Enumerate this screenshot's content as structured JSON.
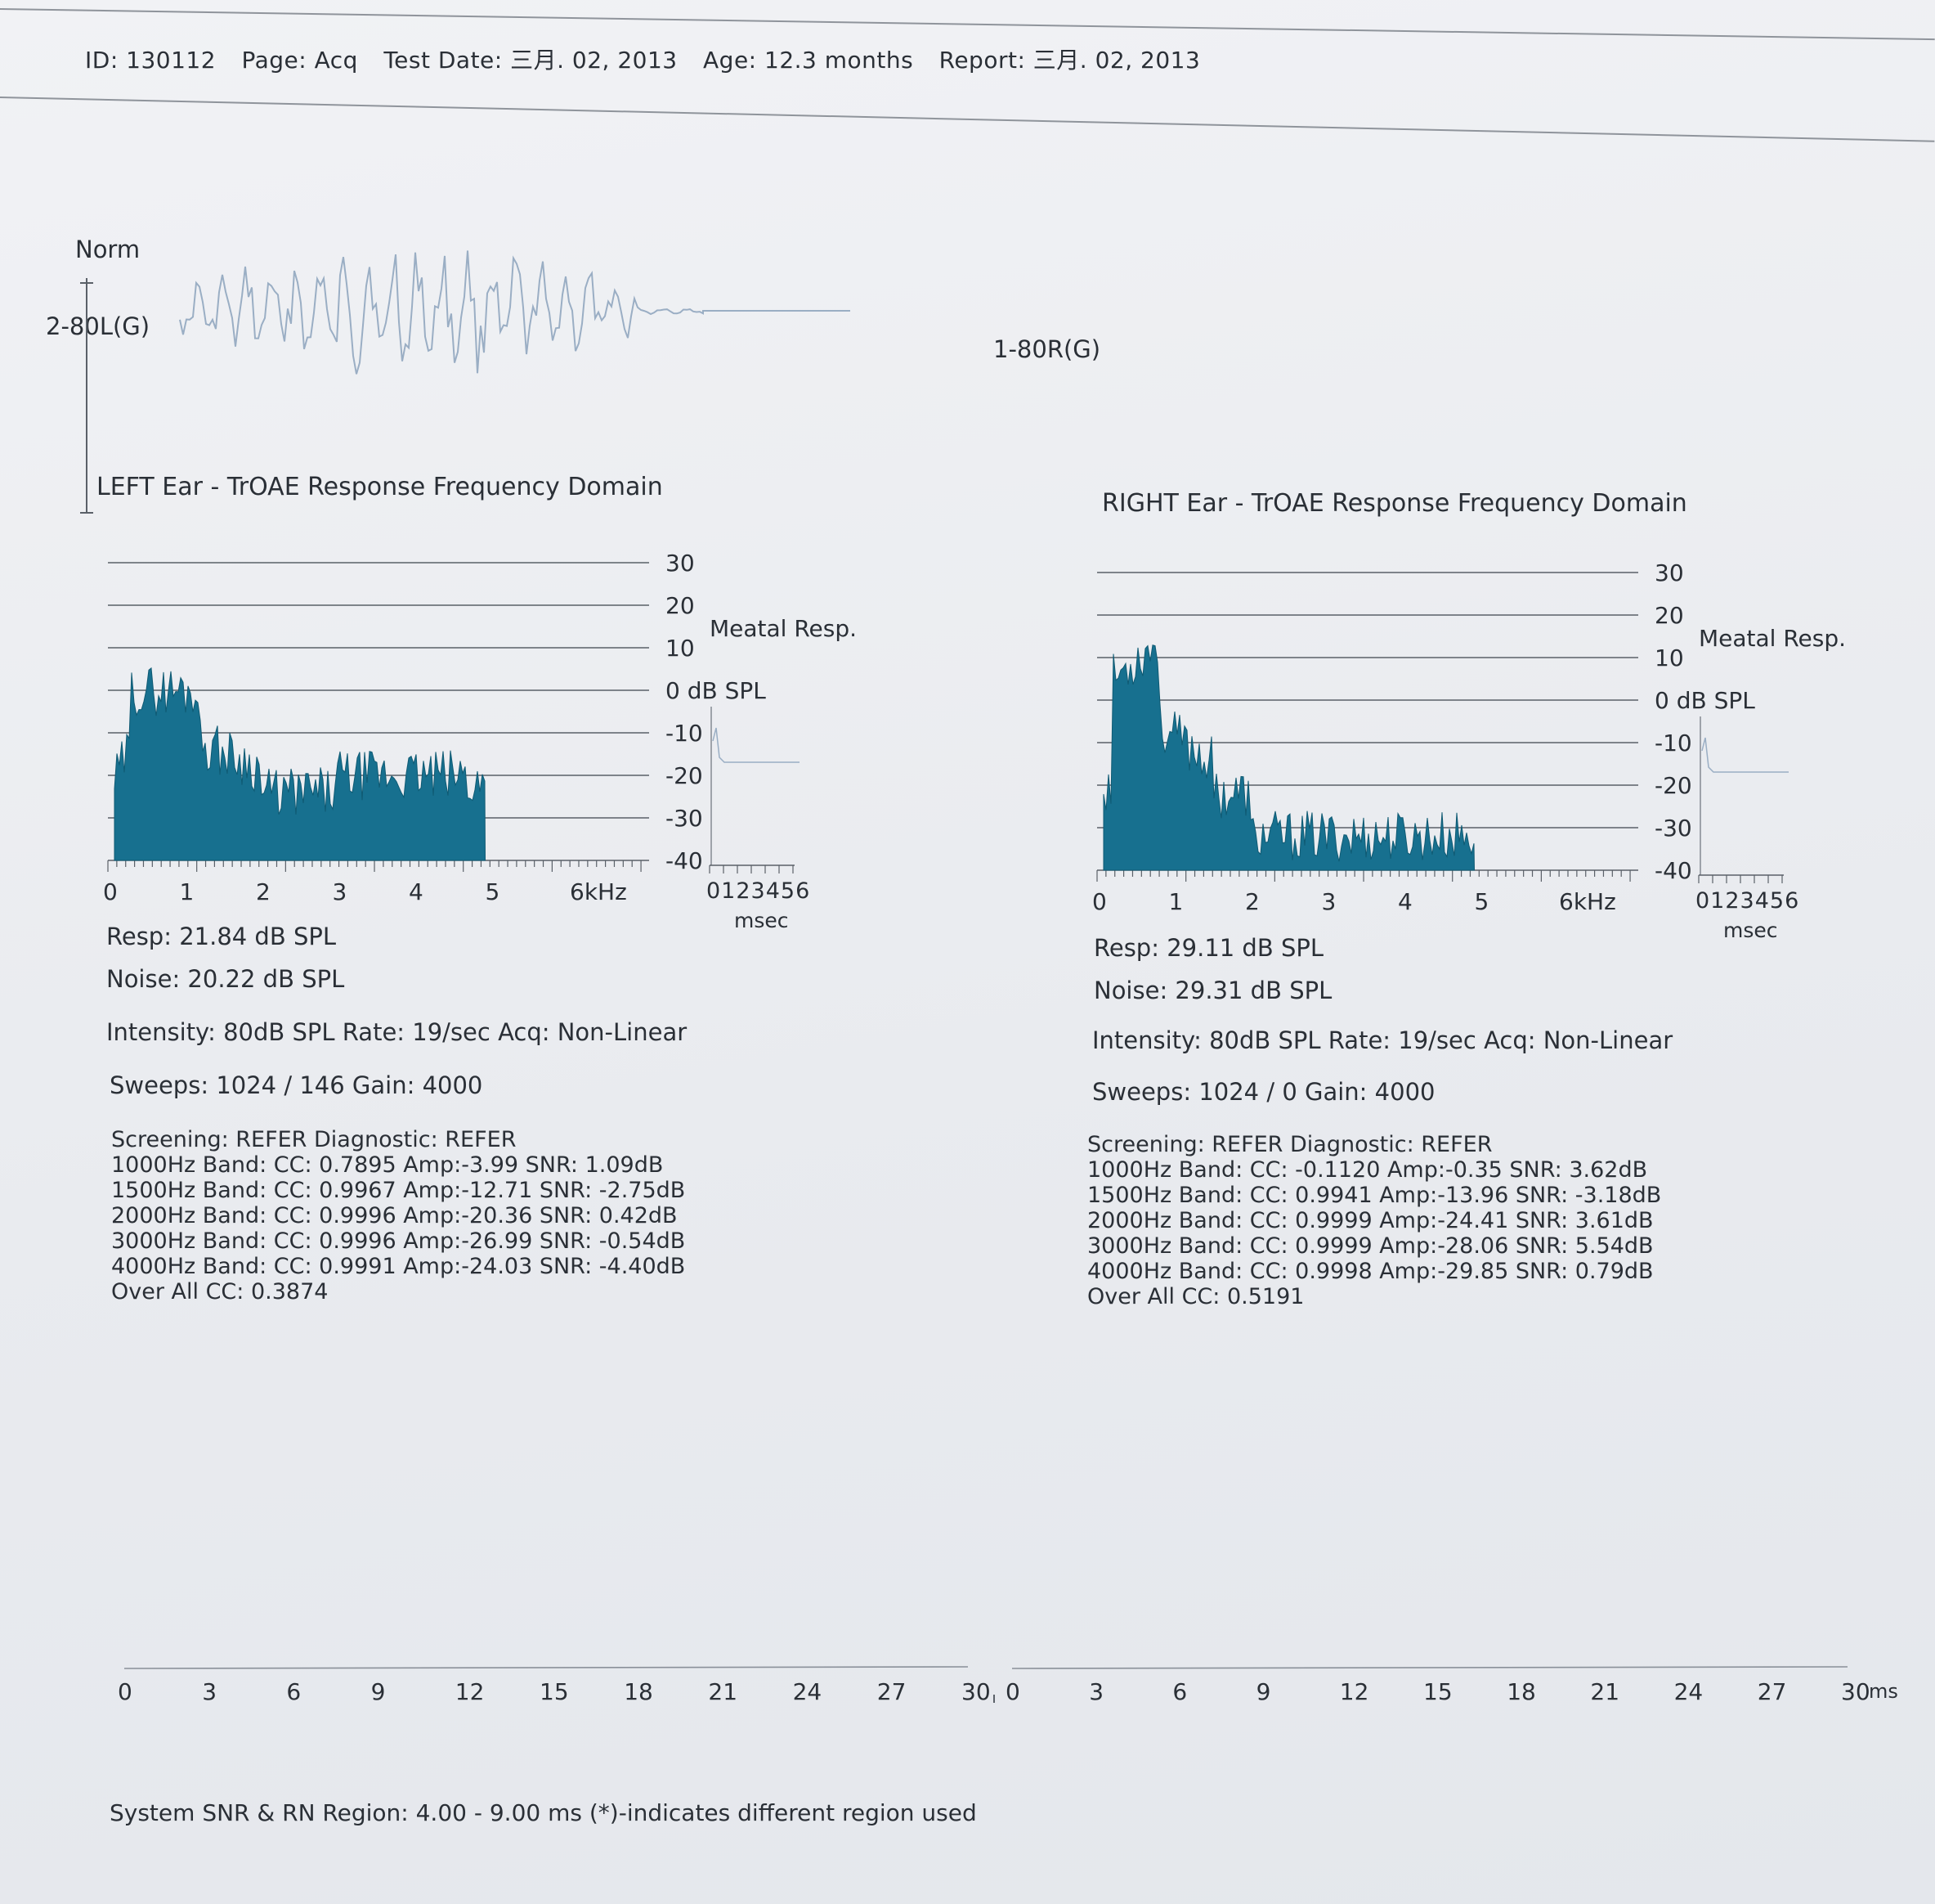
{
  "header": {
    "id": "ID: 130112",
    "page": "Page: Acq",
    "test_date": "Test Date: 三月. 02, 2013",
    "age": "Age: 12.3 months",
    "report": "Report: 三月. 02, 2013"
  },
  "waveform": {
    "norm_label": "Norm",
    "left_label": "2-80L(G)",
    "right_label": "1-80R(G)"
  },
  "left": {
    "title": "LEFT Ear - TrOAE Response Frequency Domain",
    "y_ticks": [
      "30",
      "20",
      "10",
      "0 dB SPL",
      "-10",
      "-20",
      "-30",
      "-40"
    ],
    "x_ticks": [
      "0",
      "1",
      "2",
      "3",
      "4",
      "5",
      "6kHz"
    ],
    "meatal_label": "Meatal Resp.",
    "meatal_ticks": "0123456",
    "meatal_unit": "msec",
    "resp": "Resp: 21.84 dB SPL",
    "noise": "Noise: 20.22 dB SPL",
    "intensity": "Intensity: 80dB SPL  Rate: 19/sec  Acq: Non-Linear",
    "sweeps": "Sweeps: 1024 / 146  Gain: 4000",
    "screening": "Screening: REFER Diagnostic: REFER",
    "bands": [
      "1000Hz Band: CC: 0.7895 Amp:-3.99 SNR: 1.09dB",
      "1500Hz Band: CC: 0.9967 Amp:-12.71 SNR: -2.75dB",
      "2000Hz Band: CC: 0.9996 Amp:-20.36 SNR: 0.42dB",
      "3000Hz Band: CC: 0.9996 Amp:-26.99 SNR: -0.54dB",
      "4000Hz Band: CC: 0.9991 Amp:-24.03 SNR: -4.40dB"
    ],
    "overall": "Over All CC: 0.3874"
  },
  "right": {
    "title": "RIGHT Ear - TrOAE Response Frequency Domain",
    "y_ticks": [
      "30",
      "20",
      "10",
      "0 dB SPL",
      "-10",
      "-20",
      "-30",
      "-40"
    ],
    "x_ticks": [
      "0",
      "1",
      "2",
      "3",
      "4",
      "5",
      "6kHz"
    ],
    "meatal_label": "Meatal Resp.",
    "meatal_ticks": "0123456",
    "meatal_unit": "msec",
    "resp": "Resp: 29.11 dB SPL",
    "noise": "Noise: 29.31 dB SPL",
    "intensity": "Intensity: 80dB SPL  Rate: 19/sec  Acq: Non-Linear",
    "sweeps": "Sweeps: 1024 / 0  Gain: 4000",
    "screening": "Screening: REFER Diagnostic: REFER",
    "bands": [
      "1000Hz Band: CC: -0.1120 Amp:-0.35 SNR: 3.62dB",
      "1500Hz Band: CC: 0.9941 Amp:-13.96 SNR: -3.18dB",
      "2000Hz Band: CC: 0.9999 Amp:-24.41 SNR: 3.61dB",
      "3000Hz Band: CC: 0.9999 Amp:-28.06 SNR: 5.54dB",
      "4000Hz Band: CC: 0.9998 Amp:-29.85 SNR: 0.79dB"
    ],
    "overall": "Over All CC: 0.5191"
  },
  "time_axis": {
    "left_ticks": [
      "0",
      "3",
      "6",
      "9",
      "12",
      "15",
      "18",
      "21",
      "24",
      "27",
      "30"
    ],
    "right_ticks": [
      "0",
      "3",
      "6",
      "9",
      "12",
      "15",
      "18",
      "21",
      "24",
      "27",
      "30"
    ],
    "unit": "ms"
  },
  "footer": "System SNR & RN Region: 4.00 - 9.00 ms  (*)-indicates different region used",
  "colors": {
    "fill": "#17708f",
    "waveform": "#9aaec4",
    "grid": "#5a6068",
    "text": "#2a2f36"
  }
}
